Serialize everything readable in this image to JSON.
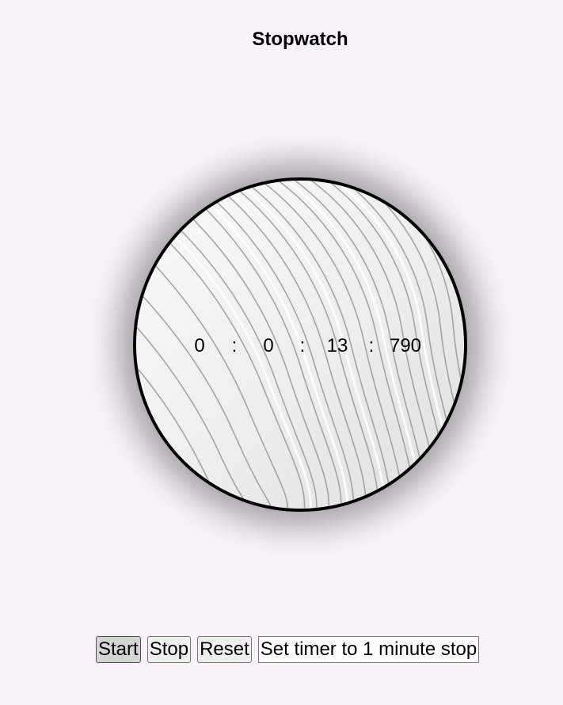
{
  "header": {
    "title": "Stopwatch"
  },
  "stopwatch": {
    "hours": "0",
    "minutes": "0",
    "seconds": "13",
    "milliseconds": "790",
    "separator": ":"
  },
  "controls": {
    "start_label": "Start",
    "stop_label": "Stop",
    "reset_label": "Reset",
    "timer_label": "Set timer to 1 minute stop"
  },
  "colors": {
    "background": "#f7f3f9",
    "dial_border": "#000000",
    "button_bg": "#efefef",
    "active_button_bg": "#d5d5d5"
  }
}
